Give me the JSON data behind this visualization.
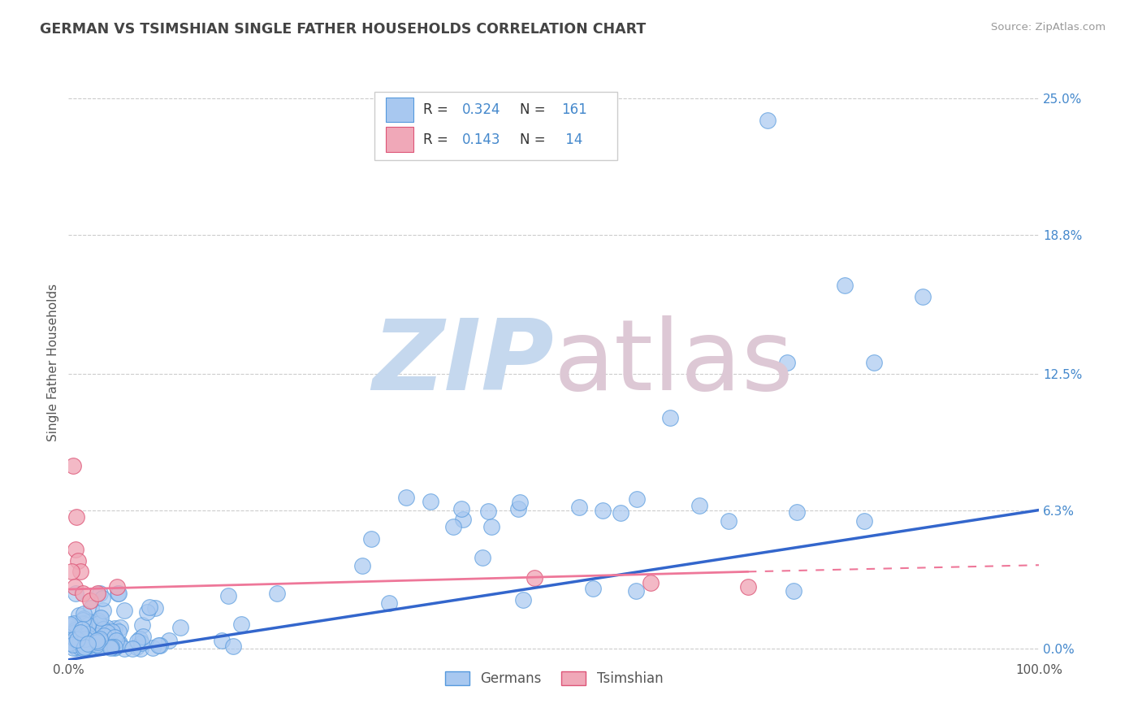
{
  "title": "GERMAN VS TSIMSHIAN SINGLE FATHER HOUSEHOLDS CORRELATION CHART",
  "source_text": "Source: ZipAtlas.com",
  "ylabel": "Single Father Households",
  "xlim": [
    0.0,
    1.0
  ],
  "ylim": [
    -0.005,
    0.265
  ],
  "yticks": [
    0.0,
    0.063,
    0.125,
    0.188,
    0.25
  ],
  "ytick_labels": [
    "0.0%",
    "6.3%",
    "12.5%",
    "18.8%",
    "25.0%"
  ],
  "xtick_labels": [
    "0.0%",
    "100.0%"
  ],
  "color_blue": "#a8c8f0",
  "color_blue_edge": "#5599dd",
  "color_pink": "#f0a8b8",
  "color_pink_edge": "#dd5577",
  "color_line_blue": "#3366cc",
  "color_line_pink": "#ee7799",
  "color_line_pink_dash": "#ee7799",
  "color_text_blue": "#4488cc",
  "color_title": "#444444",
  "background_color": "#ffffff",
  "grid_color": "#cccccc",
  "watermark_ZIP_color": "#c5d8ee",
  "watermark_atlas_color": "#ddc8d5",
  "legend_box_color": "#eeeeee",
  "legend_box_edge": "#cccccc"
}
